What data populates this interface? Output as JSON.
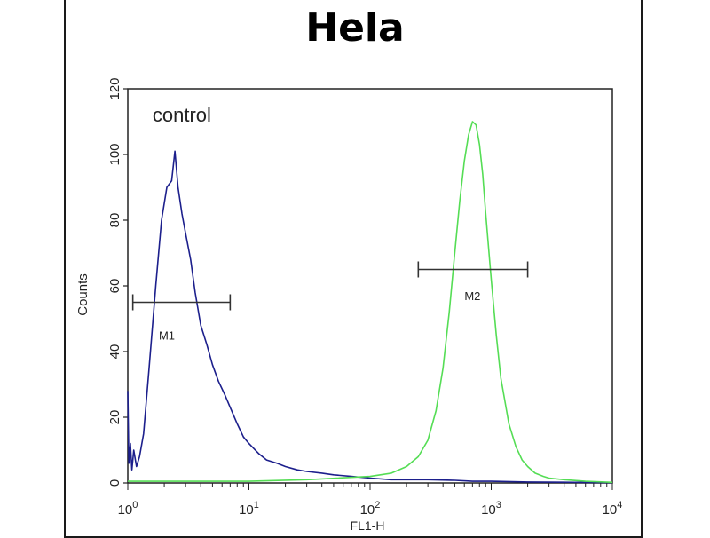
{
  "chart_data": {
    "type": "line",
    "title": "Hela",
    "xlabel": "FL1-H",
    "ylabel": "Counts",
    "x_scale": "log",
    "xlim": [
      1,
      10000
    ],
    "ylim": [
      0,
      120
    ],
    "y_ticks": [
      "0",
      "20",
      "40",
      "60",
      "80",
      "100",
      "120"
    ],
    "x_ticks": [
      {
        "value": 1,
        "base": "10",
        "exp": "0"
      },
      {
        "value": 10,
        "base": "10",
        "exp": "1"
      },
      {
        "value": 100,
        "base": "10",
        "exp": "2"
      },
      {
        "value": 1000,
        "base": "10",
        "exp": "3"
      },
      {
        "value": 10000,
        "base": "10",
        "exp": "4"
      }
    ],
    "annotations": [
      {
        "text": "control",
        "x": 1.6,
        "y": 110
      }
    ],
    "markers": [
      {
        "label": "M1",
        "x_start": 1.1,
        "x_end": 7,
        "y": 55,
        "label_x": 2.1,
        "label_y": 45
      },
      {
        "label": "M2",
        "x_start": 250,
        "x_end": 2000,
        "y": 65,
        "label_x": 700,
        "label_y": 57
      }
    ],
    "series": [
      {
        "color": "#1c1f8c",
        "x": [
          1,
          1.02,
          1.05,
          1.08,
          1.12,
          1.18,
          1.25,
          1.35,
          1.5,
          1.7,
          1.9,
          2.1,
          2.3,
          2.45,
          2.6,
          2.8,
          3.0,
          3.3,
          3.6,
          4.0,
          4.5,
          5.0,
          5.6,
          6.3,
          7.0,
          8.0,
          9.0,
          10,
          12,
          14,
          17,
          20,
          25,
          30,
          40,
          50,
          70,
          100,
          150,
          200,
          300,
          500,
          700,
          1000,
          2000,
          5000,
          10000
        ],
        "y": [
          28,
          6,
          12,
          4,
          10,
          5,
          8,
          15,
          35,
          60,
          80,
          90,
          92,
          101,
          90,
          82,
          76,
          68,
          58,
          48,
          42,
          36,
          31,
          27,
          23,
          18,
          14,
          12,
          9,
          7,
          6,
          5,
          4,
          3.5,
          3,
          2.5,
          2,
          1.5,
          1,
          1,
          1,
          0.8,
          0.5,
          0.5,
          0.3,
          0.2,
          0.1
        ]
      },
      {
        "color": "#55dd55",
        "x": [
          1,
          2,
          5,
          10,
          30,
          100,
          150,
          200,
          250,
          300,
          350,
          400,
          450,
          500,
          550,
          600,
          650,
          700,
          750,
          800,
          850,
          900,
          1000,
          1100,
          1200,
          1400,
          1600,
          1800,
          2000,
          2300,
          2700,
          3000,
          4000,
          6000,
          10000
        ],
        "y": [
          0.5,
          0.5,
          0.5,
          0.5,
          1,
          2,
          3,
          5,
          8,
          13,
          22,
          35,
          52,
          70,
          86,
          98,
          106,
          110,
          109,
          103,
          94,
          82,
          62,
          45,
          32,
          18,
          11,
          7,
          5,
          3,
          2,
          1.5,
          1,
          0.5,
          0.2
        ]
      }
    ]
  }
}
